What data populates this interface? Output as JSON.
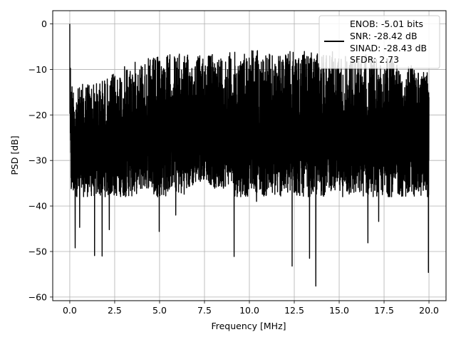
{
  "chart_data": {
    "type": "line",
    "title": "",
    "xlabel": "Frequency [MHz]",
    "ylabel": "PSD [dB]",
    "xlim": [
      -0.95,
      20.95
    ],
    "ylim": [
      -60.8,
      2.9
    ],
    "x_ticks": [
      0.0,
      2.5,
      5.0,
      7.5,
      10.0,
      12.5,
      15.0,
      17.5,
      20.0
    ],
    "x_tick_labels": [
      "0.0",
      "2.5",
      "5.0",
      "7.5",
      "10.0",
      "12.5",
      "15.0",
      "17.5",
      "20.0"
    ],
    "y_ticks": [
      0,
      -10,
      -20,
      -30,
      -40,
      -50,
      -60
    ],
    "y_tick_labels": [
      "0",
      "−10",
      "−20",
      "−30",
      "−40",
      "−50",
      "−60"
    ],
    "grid": true,
    "legend_position": "top-right",
    "legend_lines": [
      "ENOB: -5.01 bits",
      "SNR: -28.42 dB",
      "SINAD: -28.43 dB",
      "SFDR: 2.73"
    ],
    "series_color": "#000000",
    "series": [
      {
        "name": "",
        "x": [
          0.0,
          0.05,
          0.1,
          0.2,
          0.3,
          0.5,
          0.75,
          1.0,
          1.4,
          1.8,
          2.2,
          2.7,
          3.2,
          3.8,
          4.5,
          5.0,
          5.6,
          6.2,
          6.8,
          7.5,
          8.2,
          9.0,
          9.6,
          10.0,
          10.8,
          11.5,
          12.3,
          13.0,
          13.7,
          14.3,
          15.0,
          15.8,
          16.5,
          17.2,
          18.0,
          18.8,
          19.5,
          20.0
        ],
        "upper": [
          0.0,
          -10.0,
          -12.0,
          -13.0,
          -14.0,
          -14.0,
          -13.0,
          -12.0,
          -13.0,
          -12.0,
          -11.5,
          -10.0,
          -9.0,
          -8.0,
          -7.5,
          -7.0,
          -6.5,
          -6.5,
          -7.0,
          -6.5,
          -6.5,
          -6.0,
          -6.5,
          -4.5,
          -6.0,
          -7.0,
          -6.0,
          -6.0,
          -6.5,
          -5.5,
          -6.5,
          -7.0,
          -6.5,
          -8.0,
          -7.0,
          -9.0,
          -9.5,
          -10.0
        ],
        "lower": [
          -20.0,
          -35.0,
          -40.0,
          -49.0,
          -36.0,
          -44.0,
          -38.0,
          -40.0,
          -51.0,
          -51.0,
          -45.0,
          -38.0,
          -40.0,
          -37.0,
          -36.0,
          -45.5,
          -36.0,
          -38.0,
          -36.0,
          -34.0,
          -37.0,
          -35.0,
          -51.0,
          -36.0,
          -38.0,
          -39.0,
          -53.0,
          -40.0,
          -57.5,
          -36.0,
          -38.0,
          -41.0,
          -45.0,
          -39.0,
          -43.0,
          -40.0,
          -41.0,
          -54.5
        ],
        "dips": [
          [
            0.3,
            -49.2
          ],
          [
            0.55,
            -44.7
          ],
          [
            1.38,
            -50.9
          ],
          [
            1.8,
            -51.0
          ],
          [
            2.2,
            -45.2
          ],
          [
            4.98,
            -45.6
          ],
          [
            5.9,
            -42.0
          ],
          [
            9.15,
            -51.1
          ],
          [
            10.4,
            -39.0
          ],
          [
            12.38,
            -53.2
          ],
          [
            13.35,
            -51.5
          ],
          [
            13.7,
            -57.6
          ],
          [
            16.6,
            -48.1
          ],
          [
            17.2,
            -43.4
          ],
          [
            19.97,
            -54.6
          ]
        ]
      }
    ]
  }
}
